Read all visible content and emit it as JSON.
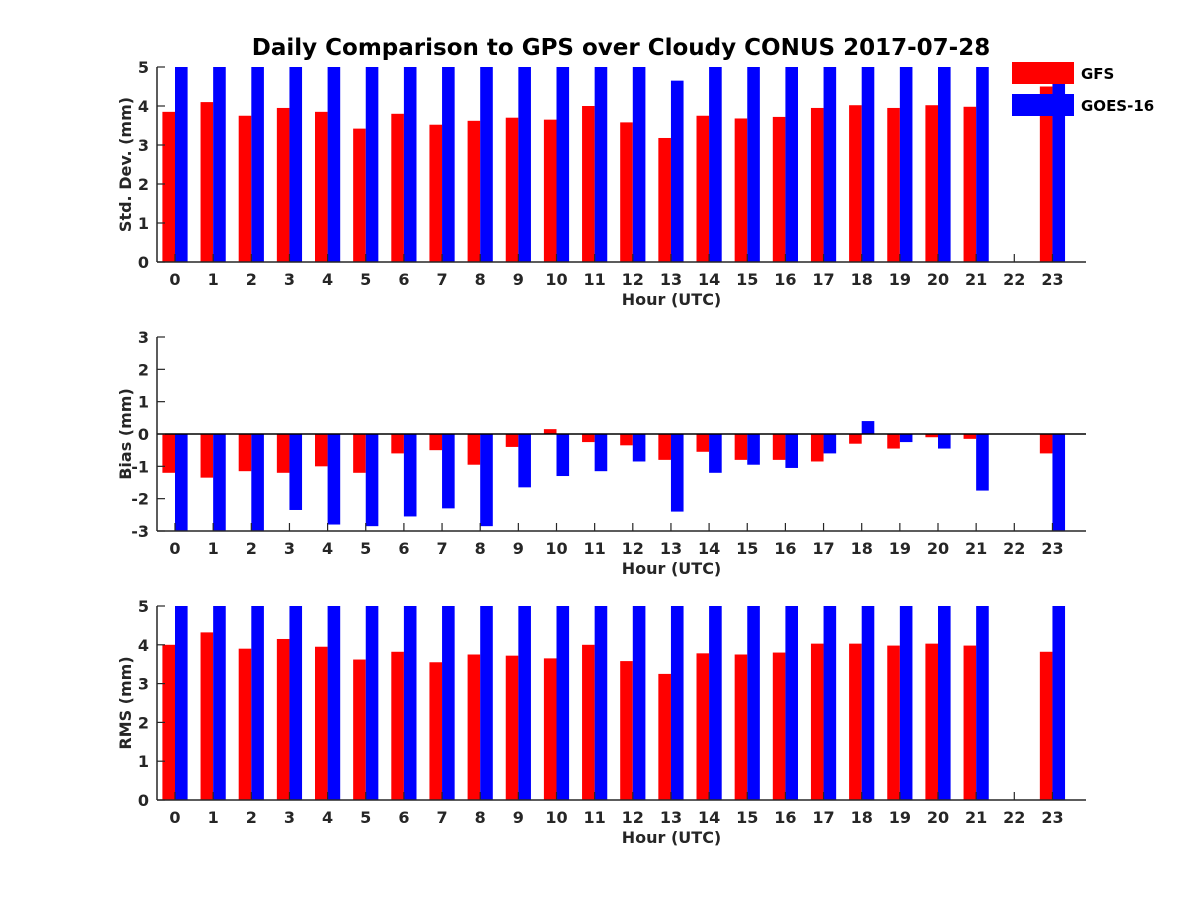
{
  "chart_data": {
    "type": "bar",
    "title": "Daily Comparison to GPS over Cloudy CONUS 2017-07-28",
    "categories": [
      "0",
      "1",
      "2",
      "3",
      "4",
      "5",
      "6",
      "7",
      "8",
      "9",
      "10",
      "11",
      "12",
      "13",
      "14",
      "15",
      "16",
      "17",
      "18",
      "19",
      "20",
      "21",
      "22",
      "23"
    ],
    "legend": {
      "placement": "top-right",
      "entries": [
        {
          "name": "GFS",
          "color": "#ff0000"
        },
        {
          "name": "GOES-16",
          "color": "#0000ff"
        }
      ]
    },
    "panels": [
      {
        "ylabel": "Std. Dev. (mm)",
        "xlabel": "Hour (UTC)",
        "ylim": [
          0,
          5
        ],
        "yticks": [
          "0",
          "1",
          "2",
          "3",
          "4",
          "5"
        ],
        "series": [
          {
            "name": "GFS",
            "color": "#ff0000",
            "values": [
              3.85,
              4.1,
              3.75,
              3.95,
              3.85,
              3.42,
              3.8,
              3.52,
              3.62,
              3.7,
              3.65,
              4.0,
              3.58,
              3.18,
              3.75,
              3.68,
              3.72,
              3.95,
              4.02,
              3.95,
              4.02,
              3.98,
              null,
              4.5
            ]
          },
          {
            "name": "GOES-16",
            "color": "#0000ff",
            "values": [
              5,
              5,
              5,
              5,
              5,
              5,
              5,
              5,
              5,
              5,
              5,
              5,
              5,
              4.65,
              5,
              5,
              5,
              5,
              5,
              5,
              5,
              5,
              null,
              5
            ]
          }
        ]
      },
      {
        "ylabel": "Bias (mm)",
        "xlabel": "Hour (UTC)",
        "ylim": [
          -3,
          3
        ],
        "yticks": [
          "-3",
          "-2",
          "-1",
          "0",
          "1",
          "2",
          "3"
        ],
        "zero_line": true,
        "series": [
          {
            "name": "GFS",
            "color": "#ff0000",
            "values": [
              -1.2,
              -1.35,
              -1.15,
              -1.2,
              -1.0,
              -1.2,
              -0.6,
              -0.5,
              -0.95,
              -0.4,
              0.15,
              -0.25,
              -0.35,
              -0.8,
              -0.55,
              -0.8,
              -0.8,
              -0.85,
              -0.3,
              -0.45,
              -0.1,
              -0.15,
              null,
              -0.6
            ]
          },
          {
            "name": "GOES-16",
            "color": "#0000ff",
            "values": [
              -3,
              -3,
              -3,
              -2.35,
              -2.8,
              -2.85,
              -2.55,
              -2.3,
              -2.85,
              -1.65,
              -1.3,
              -1.15,
              -0.85,
              -2.4,
              -1.2,
              -0.95,
              -1.05,
              -0.6,
              0.4,
              -0.25,
              -0.45,
              -1.75,
              null,
              -3
            ]
          }
        ]
      },
      {
        "ylabel": "RMS (mm)",
        "xlabel": "Hour (UTC)",
        "ylim": [
          0,
          5
        ],
        "yticks": [
          "0",
          "1",
          "2",
          "3",
          "4",
          "5"
        ],
        "series": [
          {
            "name": "GFS",
            "color": "#ff0000",
            "values": [
              4.0,
              4.32,
              3.9,
              4.15,
              3.95,
              3.62,
              3.82,
              3.55,
              3.75,
              3.72,
              3.65,
              4.0,
              3.58,
              3.25,
              3.78,
              3.75,
              3.8,
              4.03,
              4.03,
              3.98,
              4.03,
              3.98,
              null,
              3.82
            ]
          },
          {
            "name": "GOES-16",
            "color": "#0000ff",
            "values": [
              5,
              5,
              5,
              5,
              5,
              5,
              5,
              5,
              5,
              5,
              5,
              5,
              5,
              5,
              5,
              5,
              5,
              5,
              5,
              5,
              5,
              5,
              null,
              5
            ]
          }
        ]
      }
    ]
  }
}
